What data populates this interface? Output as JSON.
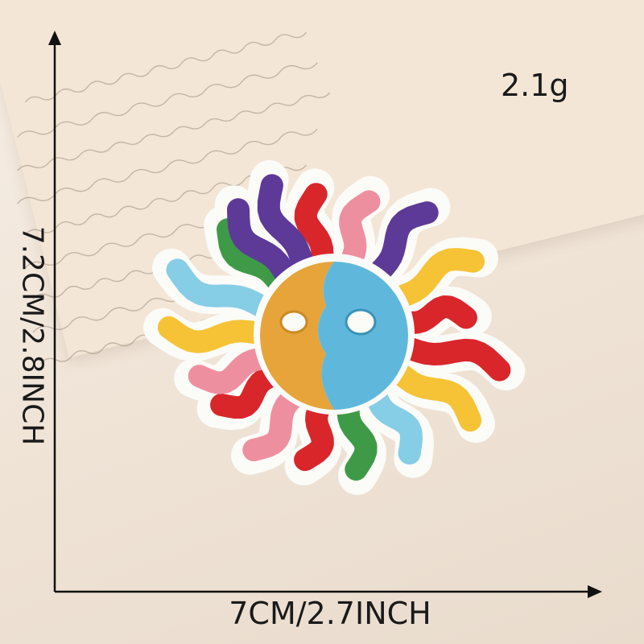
{
  "product": {
    "weight": "2.1g",
    "height_label": "7.2CM/2.8INCH",
    "width_label": "7CM/2.7INCH"
  },
  "colors": {
    "background": "#efe3d6",
    "paper": "#f3e6d6",
    "felt": "#fbfbf8",
    "face_left": "#e6a43a",
    "face_right": "#5fb8dc",
    "ray_red": "#d9262b",
    "ray_purple": "#5d3a97",
    "ray_pink": "#ee8fa0",
    "ray_yellow": "#f5c335",
    "ray_green": "#3f9a48",
    "ray_blue": "#86cde6"
  }
}
